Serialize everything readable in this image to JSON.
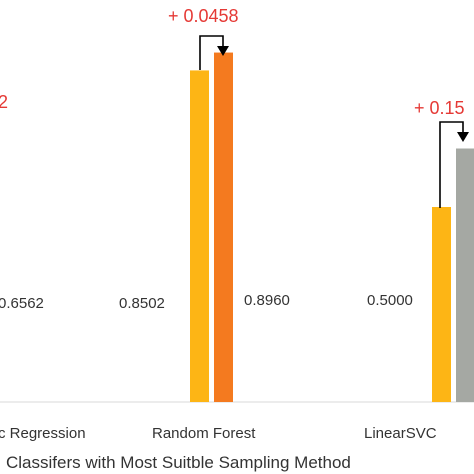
{
  "chart_data": {
    "type": "bar",
    "xlabel": "Classifers with Most Suitble Sampling Method",
    "ylabel": "",
    "categories": [
      "c Regression",
      "Random Forest",
      "LinearSVC"
    ],
    "series": [
      {
        "values": [
          0.6562,
          0.8502,
          0.5
        ],
        "labels": [
          "0.6562",
          "0.8502",
          "0.5000"
        ]
      },
      {
        "values": [
          null,
          0.896,
          0.65
        ],
        "labels": [
          "",
          "0.8960",
          ""
        ]
      }
    ],
    "annotations": [
      "2",
      "+ 0.0458",
      "+ 0.15"
    ],
    "ylim": [
      0,
      1
    ],
    "grid": false,
    "colors": {
      "base": "#fdb515",
      "improved_rf": "#f47a1f",
      "improved_svc": "#a5a8a3",
      "delta_text": "#e53935",
      "axis_text": "#333333"
    }
  }
}
